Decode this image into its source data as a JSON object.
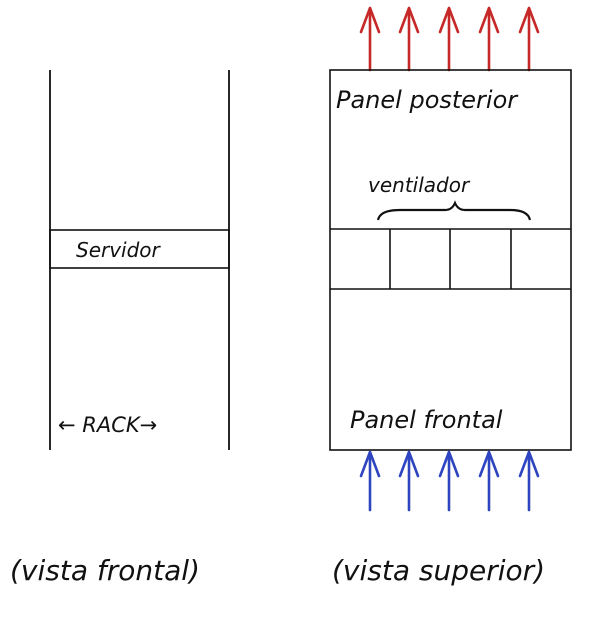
{
  "colors": {
    "ink": "#111111",
    "exhaust_arrow": "#c62828",
    "intake_arrow": "#2f45c0"
  },
  "front_view": {
    "server_label": "Servidor",
    "rack_label": "← RACK→",
    "caption": "(vista frontal)"
  },
  "top_view": {
    "rear_panel_label": "Panel posterior",
    "fans_label": "ventilador",
    "front_panel_label": "Panel frontal",
    "caption": "(vista superior)",
    "fan_count": 4,
    "exhaust_arrow_count": 5,
    "intake_arrow_count": 5
  }
}
